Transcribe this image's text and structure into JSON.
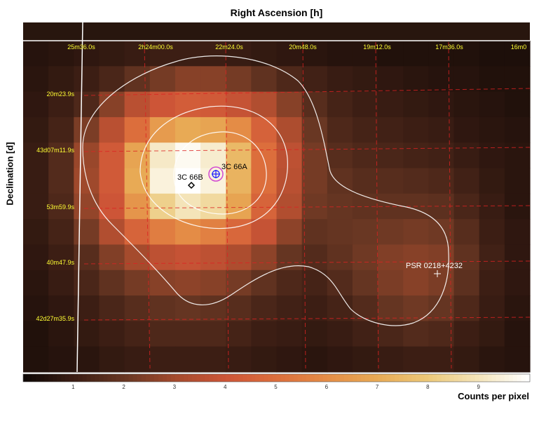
{
  "chart_data": {
    "type": "heatmap",
    "title": "Right Ascension [h]",
    "xlabel": "Right Ascension [h]",
    "ylabel": "Declination [d]",
    "colorbar_label": "Counts per pixel",
    "colorbar_range": [
      0,
      10
    ],
    "colorbar_ticks": [
      "1",
      "2",
      "3",
      "4",
      "5",
      "6",
      "7",
      "8",
      "9"
    ],
    "x_tick_labels": [
      "25m36.0s",
      "2h24m00.0s",
      "22m24.0s",
      "20m48.0s",
      "19m12.0s",
      "17m36.0s",
      "16m0"
    ],
    "y_tick_labels": [
      "20m23.9s",
      "43d07m11.9s",
      "53m59.9s",
      "40m47.9s",
      "42d27m35.9s"
    ],
    "grid": [
      [
        0.5,
        0.6,
        0.7,
        0.8,
        0.9,
        1.0,
        1.0,
        1.0,
        0.9,
        0.8,
        0.7,
        0.6,
        0.5,
        0.5,
        0.4,
        0.4,
        0.4,
        0.4,
        0.3,
        0.3
      ],
      [
        0.6,
        0.8,
        1.0,
        1.3,
        1.8,
        2.2,
        2.5,
        2.5,
        2.2,
        1.8,
        1.4,
        1.1,
        0.9,
        0.8,
        0.7,
        0.6,
        0.5,
        0.5,
        0.4,
        0.4
      ],
      [
        0.7,
        1.0,
        1.4,
        2.5,
        3.5,
        4.0,
        4.3,
        4.2,
        3.8,
        3.3,
        2.5,
        1.6,
        1.2,
        1.0,
        0.9,
        0.8,
        0.7,
        0.6,
        0.5,
        0.4
      ],
      [
        0.8,
        1.2,
        2.3,
        3.5,
        5.0,
        6.5,
        7.0,
        6.8,
        6.0,
        4.5,
        3.2,
        2.0,
        1.4,
        1.2,
        1.1,
        1.0,
        0.9,
        0.7,
        0.6,
        0.5
      ],
      [
        0.9,
        1.5,
        2.8,
        4.2,
        6.8,
        9.2,
        9.8,
        9.3,
        7.5,
        5.0,
        3.6,
        2.2,
        1.6,
        1.4,
        1.3,
        1.2,
        1.1,
        0.9,
        0.7,
        0.6
      ],
      [
        0.9,
        1.5,
        2.9,
        4.2,
        7.0,
        9.5,
        10.0,
        9.5,
        7.3,
        5.0,
        3.5,
        2.2,
        1.8,
        1.6,
        1.6,
        1.5,
        1.4,
        1.1,
        0.8,
        0.6
      ],
      [
        0.9,
        1.4,
        2.7,
        4.0,
        6.3,
        8.3,
        9.0,
        8.6,
        6.8,
        4.6,
        3.3,
        2.1,
        1.9,
        1.8,
        1.8,
        1.8,
        1.7,
        1.3,
        0.9,
        0.6
      ],
      [
        0.8,
        1.2,
        2.2,
        3.3,
        4.6,
        5.5,
        6.0,
        5.6,
        4.7,
        3.8,
        2.6,
        1.8,
        1.9,
        2.0,
        2.1,
        2.2,
        2.1,
        1.6,
        1.0,
        0.7
      ],
      [
        0.7,
        1.0,
        1.6,
        2.4,
        3.0,
        3.6,
        3.8,
        3.6,
        3.2,
        2.6,
        1.9,
        1.5,
        1.8,
        2.1,
        2.4,
        2.5,
        2.4,
        1.8,
        1.1,
        0.7
      ],
      [
        0.6,
        0.9,
        1.3,
        1.8,
        2.2,
        2.5,
        2.6,
        2.5,
        2.2,
        1.8,
        1.4,
        1.2,
        1.5,
        1.9,
        2.3,
        2.5,
        2.3,
        1.7,
        1.0,
        0.7
      ],
      [
        0.5,
        0.7,
        1.0,
        1.3,
        1.6,
        1.8,
        1.9,
        1.8,
        1.6,
        1.3,
        1.1,
        1.0,
        1.2,
        1.5,
        1.9,
        2.1,
        1.9,
        1.4,
        0.9,
        0.6
      ],
      [
        0.4,
        0.6,
        0.8,
        1.0,
        1.2,
        1.4,
        1.4,
        1.4,
        1.2,
        1.0,
        0.9,
        0.8,
        0.9,
        1.1,
        1.3,
        1.5,
        1.4,
        1.0,
        0.8,
        0.5
      ],
      [
        0.4,
        0.5,
        0.6,
        0.8,
        0.9,
        1.0,
        1.0,
        1.0,
        0.9,
        0.8,
        0.7,
        0.6,
        0.7,
        0.8,
        0.9,
        1.0,
        1.0,
        0.8,
        0.6,
        0.5
      ]
    ],
    "sources": [
      {
        "label": "3C 66A",
        "marker": "circle-plus",
        "color": "#1a1aff",
        "ring_color": "#d24ad2"
      },
      {
        "label": "3C 66B",
        "marker": "diamond",
        "color": "#000000"
      },
      {
        "label": "PSR 0218+4232",
        "marker": "plus",
        "color": "#ffffff"
      }
    ],
    "colors": {
      "gridline": "#dd2222",
      "contour": "#ffffff",
      "axis_line": "#ffffff",
      "tick_text": "#ffff33"
    }
  }
}
